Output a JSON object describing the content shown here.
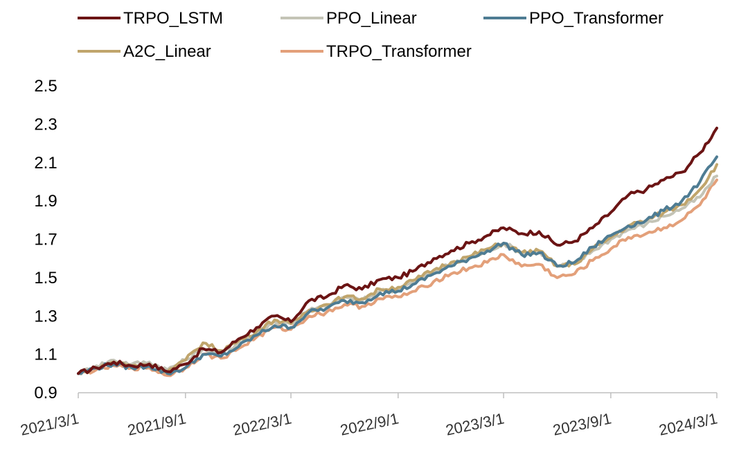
{
  "chart_data": {
    "type": "line",
    "title": "",
    "xlabel": "",
    "ylabel": "",
    "ylim": [
      0.9,
      2.5
    ],
    "xlim": [
      "2021-03-01",
      "2024-03-01"
    ],
    "y_ticks": [
      "0.9",
      "1.1",
      "1.3",
      "1.5",
      "1.7",
      "1.9",
      "2.1",
      "2.3",
      "2.5"
    ],
    "x_ticks": [
      "2021/3/1",
      "2021/9/1",
      "2022/3/1",
      "2022/9/1",
      "2023/3/1",
      "2023/9/1",
      "2024/3/1"
    ],
    "grid": false,
    "legend_position": "top",
    "x": [
      "2021-03-01",
      "2021-04-01",
      "2021-05-01",
      "2021-06-01",
      "2021-07-01",
      "2021-08-01",
      "2021-09-01",
      "2021-10-01",
      "2021-11-01",
      "2021-12-01",
      "2022-01-01",
      "2022-02-01",
      "2022-03-01",
      "2022-04-01",
      "2022-05-01",
      "2022-06-01",
      "2022-07-01",
      "2022-08-01",
      "2022-09-01",
      "2022-10-01",
      "2022-11-01",
      "2022-12-01",
      "2023-01-01",
      "2023-02-01",
      "2023-03-01",
      "2023-04-01",
      "2023-05-01",
      "2023-06-01",
      "2023-07-01",
      "2023-08-01",
      "2023-09-01",
      "2023-10-01",
      "2023-11-01",
      "2023-12-01",
      "2024-01-01",
      "2024-02-01",
      "2024-03-01"
    ],
    "series": [
      {
        "name": "TRPO_LSTM",
        "color": "#6b1414",
        "values": [
          1.0,
          1.03,
          1.06,
          1.04,
          1.05,
          1.01,
          1.05,
          1.13,
          1.11,
          1.18,
          1.24,
          1.3,
          1.27,
          1.38,
          1.4,
          1.46,
          1.44,
          1.49,
          1.5,
          1.54,
          1.6,
          1.64,
          1.68,
          1.72,
          1.76,
          1.73,
          1.74,
          1.67,
          1.69,
          1.76,
          1.84,
          1.93,
          1.96,
          2.01,
          2.05,
          2.15,
          2.28
        ]
      },
      {
        "name": "PPO_Linear",
        "color": "#c4c4b6",
        "values": [
          1.0,
          1.04,
          1.07,
          1.05,
          1.06,
          1.02,
          1.07,
          1.13,
          1.1,
          1.16,
          1.21,
          1.27,
          1.26,
          1.33,
          1.35,
          1.4,
          1.38,
          1.43,
          1.44,
          1.48,
          1.53,
          1.57,
          1.6,
          1.64,
          1.68,
          1.63,
          1.64,
          1.56,
          1.57,
          1.64,
          1.7,
          1.75,
          1.78,
          1.82,
          1.86,
          1.92,
          2.03
        ]
      },
      {
        "name": "PPO_Transformer",
        "color": "#4e7c93",
        "values": [
          1.0,
          1.03,
          1.05,
          1.03,
          1.04,
          1.0,
          1.03,
          1.1,
          1.09,
          1.14,
          1.2,
          1.25,
          1.24,
          1.32,
          1.34,
          1.38,
          1.37,
          1.42,
          1.43,
          1.47,
          1.52,
          1.56,
          1.6,
          1.64,
          1.68,
          1.62,
          1.63,
          1.56,
          1.58,
          1.66,
          1.72,
          1.77,
          1.8,
          1.85,
          1.9,
          2.0,
          2.13
        ]
      },
      {
        "name": "A2C_Linear",
        "color": "#c0a56c",
        "values": [
          1.0,
          1.03,
          1.06,
          1.04,
          1.05,
          1.01,
          1.07,
          1.16,
          1.12,
          1.17,
          1.22,
          1.28,
          1.26,
          1.33,
          1.36,
          1.4,
          1.39,
          1.44,
          1.45,
          1.49,
          1.54,
          1.58,
          1.61,
          1.65,
          1.68,
          1.63,
          1.64,
          1.56,
          1.57,
          1.65,
          1.71,
          1.77,
          1.8,
          1.84,
          1.88,
          1.96,
          2.09
        ]
      },
      {
        "name": "TRPO_Transformer",
        "color": "#e3a07a",
        "values": [
          1.0,
          1.02,
          1.04,
          1.03,
          1.03,
          0.99,
          1.03,
          1.1,
          1.08,
          1.13,
          1.19,
          1.24,
          1.23,
          1.3,
          1.32,
          1.36,
          1.35,
          1.39,
          1.4,
          1.43,
          1.48,
          1.52,
          1.55,
          1.58,
          1.62,
          1.56,
          1.57,
          1.5,
          1.52,
          1.59,
          1.65,
          1.71,
          1.73,
          1.76,
          1.8,
          1.88,
          2.01
        ]
      }
    ]
  }
}
